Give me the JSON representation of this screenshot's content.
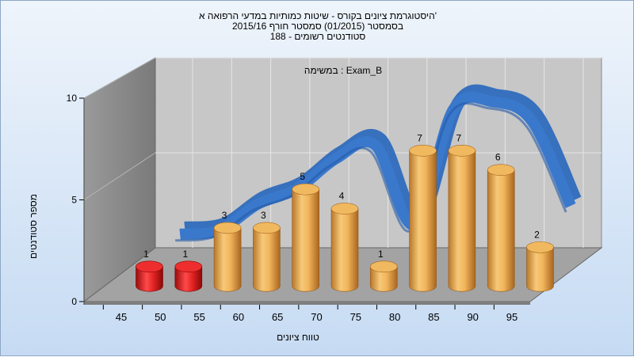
{
  "colors": {
    "bar_low": "#d81e1e",
    "bar_normal": "#e8a94a",
    "ribbon": "#2f6bbd",
    "back_wall": "#c7c7c7",
    "side_wall": "#8a8a8a",
    "floor": "#a3a3a3"
  },
  "chart_data": {
    "type": "bar",
    "title_lines": [
      "היסטוגרמת ציונים בקורס - שיטות כמותיות במדעי הרפואה א'",
      "בסמסטר   (01/2015)  סמסטר חורף 2015/16",
      "סטודנטים רשומים - 188"
    ],
    "annotation": "במשימה : Exam_B",
    "xlabel": "טווח ציונים",
    "ylabel": "מספר סטודנטים",
    "categories": [
      "45",
      "50",
      "55",
      "60",
      "65",
      "70",
      "75",
      "80",
      "85",
      "90",
      "95"
    ],
    "values": [
      1,
      1,
      3,
      3,
      5,
      4,
      1,
      7,
      7,
      6,
      2
    ],
    "low_categories": [
      "45",
      "50"
    ],
    "ylim": [
      0,
      10
    ],
    "y_ticks": [
      0,
      5,
      10
    ],
    "grid": true,
    "style": "3d-cylinder",
    "trend": {
      "type": "ribbon",
      "x": [
        "50",
        "55",
        "60",
        "65",
        "70",
        "75",
        "80",
        "85",
        "90",
        "95",
        "100"
      ],
      "y": [
        2.0,
        2.2,
        3.6,
        4.4,
        6.0,
        6.7,
        2.5,
        8.6,
        9.0,
        8.0,
        3.5
      ]
    }
  }
}
